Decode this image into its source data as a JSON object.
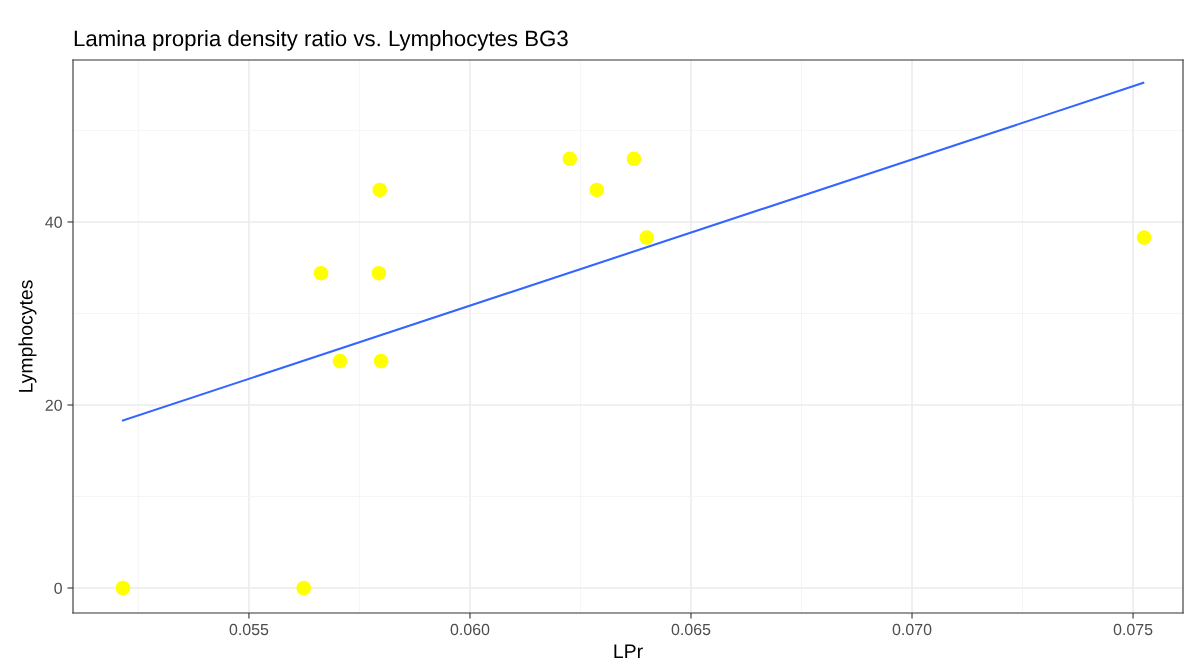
{
  "chart_data": {
    "type": "scatter",
    "title": "Lamina propria density ratio vs. Lymphocytes BG3",
    "xlabel": "LPr",
    "ylabel": "Lymphocytes",
    "series": [
      {
        "color": "#ffff00",
        "marker": "circle",
        "x": [
          0.05215,
          0.05624,
          0.05663,
          0.05706,
          0.05796,
          0.05794,
          0.05799,
          0.06226,
          0.06287,
          0.06371,
          0.064,
          0.07525
        ],
        "values": [
          0,
          0,
          34.4,
          24.8,
          43.5,
          34.4,
          24.8,
          46.9,
          43.5,
          46.9,
          38.3,
          38.3
        ]
      },
      {
        "type": "line",
        "color": "#3366ff",
        "x": [
          0.05215,
          0.07523
        ],
        "values": [
          18.3,
          55.2
        ]
      }
    ],
    "xlim": [
      0.05102,
      0.07613
    ],
    "ylim": [
      -2.73,
      57.7
    ],
    "xticks": [
      {
        "value": 0.0525,
        "label": null
      },
      0.055,
      {
        "value": 0.0575,
        "label": null
      },
      {
        "value": 0.06,
        "label": "0.060"
      },
      {
        "value": 0.0625,
        "label": null
      },
      0.065,
      {
        "value": 0.0675,
        "label": null
      },
      {
        "value": 0.07,
        "label": "0.070"
      },
      {
        "value": 0.0725,
        "label": null
      },
      0.075
    ],
    "yticks": [
      0,
      {
        "value": 10,
        "label": null
      },
      20,
      {
        "value": 30,
        "label": null
      },
      40,
      {
        "value": 50,
        "label": null
      }
    ],
    "grid": true
  }
}
